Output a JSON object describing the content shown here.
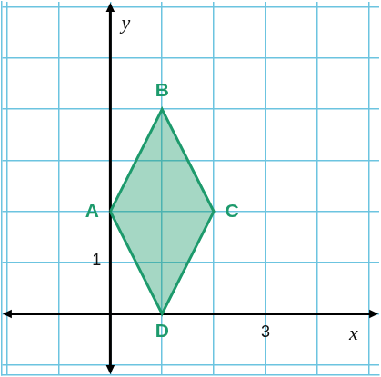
{
  "chart_data": {
    "type": "polygon",
    "xlabel": "x",
    "ylabel": "y",
    "points": [
      {
        "label": "A",
        "x": 0,
        "y": 2
      },
      {
        "label": "B",
        "x": 1,
        "y": 4
      },
      {
        "label": "C",
        "x": 2,
        "y": 2
      },
      {
        "label": "D",
        "x": 1,
        "y": 0
      }
    ],
    "color": "#1d9a6c",
    "xlim": [
      -2.1,
      5.2
    ],
    "ylim": [
      -1.2,
      6.1
    ],
    "xticks": [
      {
        "value": -2,
        "label": null
      },
      {
        "value": -1,
        "label": null
      },
      {
        "value": 0,
        "label": null
      },
      {
        "value": 1,
        "label": null
      },
      {
        "value": 2,
        "label": null
      },
      3,
      {
        "value": 4,
        "label": null
      },
      {
        "value": 5,
        "label": null
      }
    ],
    "yticks": [
      {
        "value": -1,
        "label": null
      },
      {
        "value": 0,
        "label": null
      },
      1,
      {
        "value": 2,
        "label": null
      },
      {
        "value": 3,
        "label": null
      },
      {
        "value": 4,
        "label": null
      },
      {
        "value": 5,
        "label": null
      },
      {
        "value": 6,
        "label": null
      }
    ],
    "grid": true
  }
}
